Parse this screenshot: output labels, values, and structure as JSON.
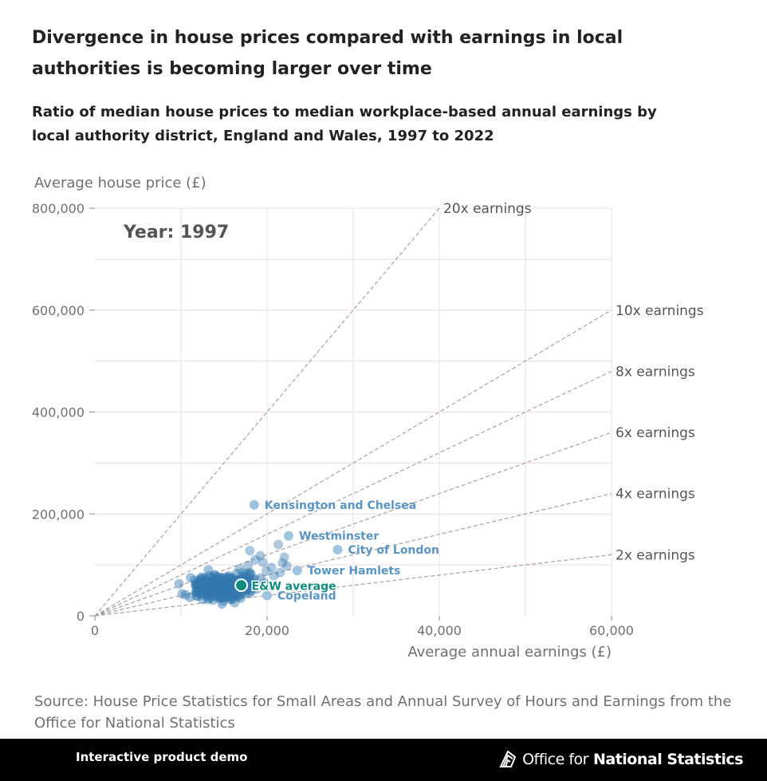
{
  "header": {
    "title": "Divergence in house prices compared with earnings in local authorities is becoming larger over time",
    "subtitle": "Ratio of median house prices to median workplace-based annual earnings by local authority district, England and Wales, 1997 to 2022"
  },
  "chart_data": {
    "type": "scatter",
    "year_label": "Year: 1997",
    "xlabel": "Average annual earnings (£)",
    "ylabel": "Average house price (£)",
    "xlim": [
      0,
      60000
    ],
    "ylim": [
      0,
      800000
    ],
    "x_ticks": [
      0,
      20000,
      40000,
      60000
    ],
    "x_tick_labels": [
      "0",
      "20,000",
      "40,000",
      "60,000"
    ],
    "y_ticks": [
      0,
      200000,
      400000,
      600000,
      800000
    ],
    "y_tick_labels": [
      "0",
      "200,000",
      "400,000",
      "600,000",
      "800,000"
    ],
    "reference_lines": [
      {
        "label": "20x earnings",
        "ratio": 20
      },
      {
        "label": "10x earnings",
        "ratio": 10
      },
      {
        "label": "8x earnings",
        "ratio": 8
      },
      {
        "label": "6x earnings",
        "ratio": 6
      },
      {
        "label": "4x earnings",
        "ratio": 4
      },
      {
        "label": "2x earnings",
        "ratio": 2
      }
    ],
    "highlighted": [
      {
        "name": "Kensington and Chelsea",
        "x": 18500,
        "y": 218000
      },
      {
        "name": "Westminster",
        "x": 22500,
        "y": 157000
      },
      {
        "name": "City of London",
        "x": 28200,
        "y": 130000
      },
      {
        "name": "Tower Hamlets",
        "x": 23500,
        "y": 89000
      },
      {
        "name": "Copeland",
        "x": 20000,
        "y": 40000
      }
    ],
    "average": {
      "name": "E&W average",
      "x": 17000,
      "y": 60000
    },
    "colors": {
      "point": "#3278b0",
      "highlight_point": "#9fc4de",
      "highlight_label": "#5a95c2",
      "average": "#0f8c7e",
      "reference_line": "#a3a3a3",
      "grid": "#f1dce4"
    }
  },
  "source": "Source: House Price Statistics for Small Areas and Annual Survey of Hours and Earnings from the Office for National Statistics",
  "footer": {
    "left_text": "Interactive product demo",
    "brand_regular": "Office for",
    "brand_bold": "National Statistics",
    "logo_icon": "ons-logo-icon"
  }
}
